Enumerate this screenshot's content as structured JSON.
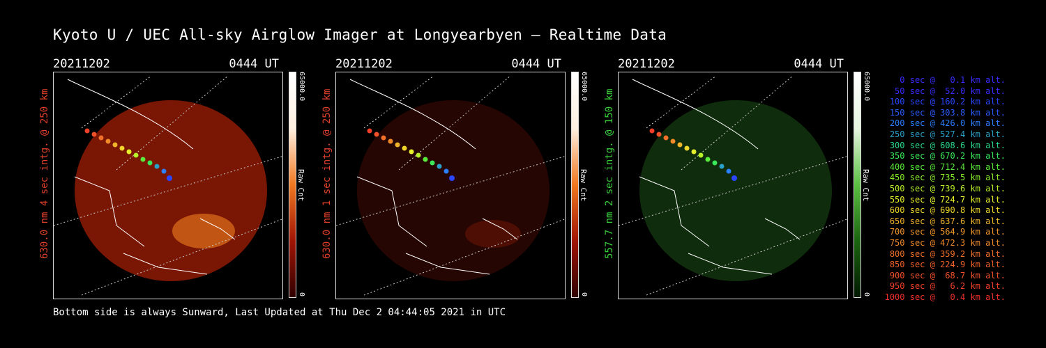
{
  "title": "Kyoto U / UEC All-sky Airglow Imager at Longyearbyen — Realtime Data",
  "footer": "Bottom side is always Sunward, Last Updated at Thu Dec  2 04:44:05 2021 in UTC",
  "panels": [
    {
      "date": "20211202",
      "time": "0444 UT",
      "side_label": "630.0 nm 4 sec intg. @ 250 km",
      "side_color": "#e0402a",
      "cbar_max": "65000.0",
      "cbar_label": "Raw Cnt",
      "cbar_min": "0",
      "fill": "#8a1a04"
    },
    {
      "date": "20211202",
      "time": "0444 UT",
      "side_label": "630.0 nm 1 sec intg. @ 250 km",
      "side_color": "#e0402a",
      "cbar_max": "65000.0",
      "cbar_label": "Raw Cnt",
      "cbar_min": "0",
      "fill": "#3a0a02"
    },
    {
      "date": "20211202",
      "time": "0444 UT",
      "side_label": "557.7 nm 2 sec intg. @ 150 km",
      "side_color": "#39d23c",
      "cbar_max": "65000.0",
      "cbar_label": "Raw Cnt",
      "cbar_min": "0",
      "fill": "#123510"
    }
  ],
  "legend": [
    {
      "text": "0 sec @   0.1 km alt.",
      "color": "#3a2cff"
    },
    {
      "text": "50 sec @  52.0 km alt.",
      "color": "#3a2cff"
    },
    {
      "text": "100 sec @ 160.2 km alt.",
      "color": "#2a46ff"
    },
    {
      "text": "150 sec @ 303.8 km alt.",
      "color": "#2a5cff"
    },
    {
      "text": "200 sec @ 426.0 km alt.",
      "color": "#2a80ff"
    },
    {
      "text": "250 sec @ 527.4 km alt.",
      "color": "#2aa0c8"
    },
    {
      "text": "300 sec @ 608.6 km alt.",
      "color": "#2ad88a"
    },
    {
      "text": "350 sec @ 670.2 km alt.",
      "color": "#3ae85a"
    },
    {
      "text": "400 sec @ 712.4 km alt.",
      "color": "#5aec3a"
    },
    {
      "text": "450 sec @ 735.5 km alt.",
      "color": "#8aee2a"
    },
    {
      "text": "500 sec @ 739.6 km alt.",
      "color": "#b8f02a"
    },
    {
      "text": "550 sec @ 724.7 km alt.",
      "color": "#e6f02a"
    },
    {
      "text": "600 sec @ 690.8 km alt.",
      "color": "#f0d62a"
    },
    {
      "text": "650 sec @ 637.6 km alt.",
      "color": "#f0b42a"
    },
    {
      "text": "700 sec @ 564.9 km alt.",
      "color": "#f0962a"
    },
    {
      "text": "750 sec @ 472.3 km alt.",
      "color": "#f08a2a"
    },
    {
      "text": "800 sec @ 359.2 km alt.",
      "color": "#f0702a"
    },
    {
      "text": "850 sec @ 224.9 km alt.",
      "color": "#f0602a"
    },
    {
      "text": "900 sec @  68.7 km alt.",
      "color": "#f0502a"
    },
    {
      "text": "950 sec @   6.2 km alt.",
      "color": "#f0402a"
    },
    {
      "text": "1000 sec @   0.4 km alt.",
      "color": "#f0302a"
    }
  ]
}
